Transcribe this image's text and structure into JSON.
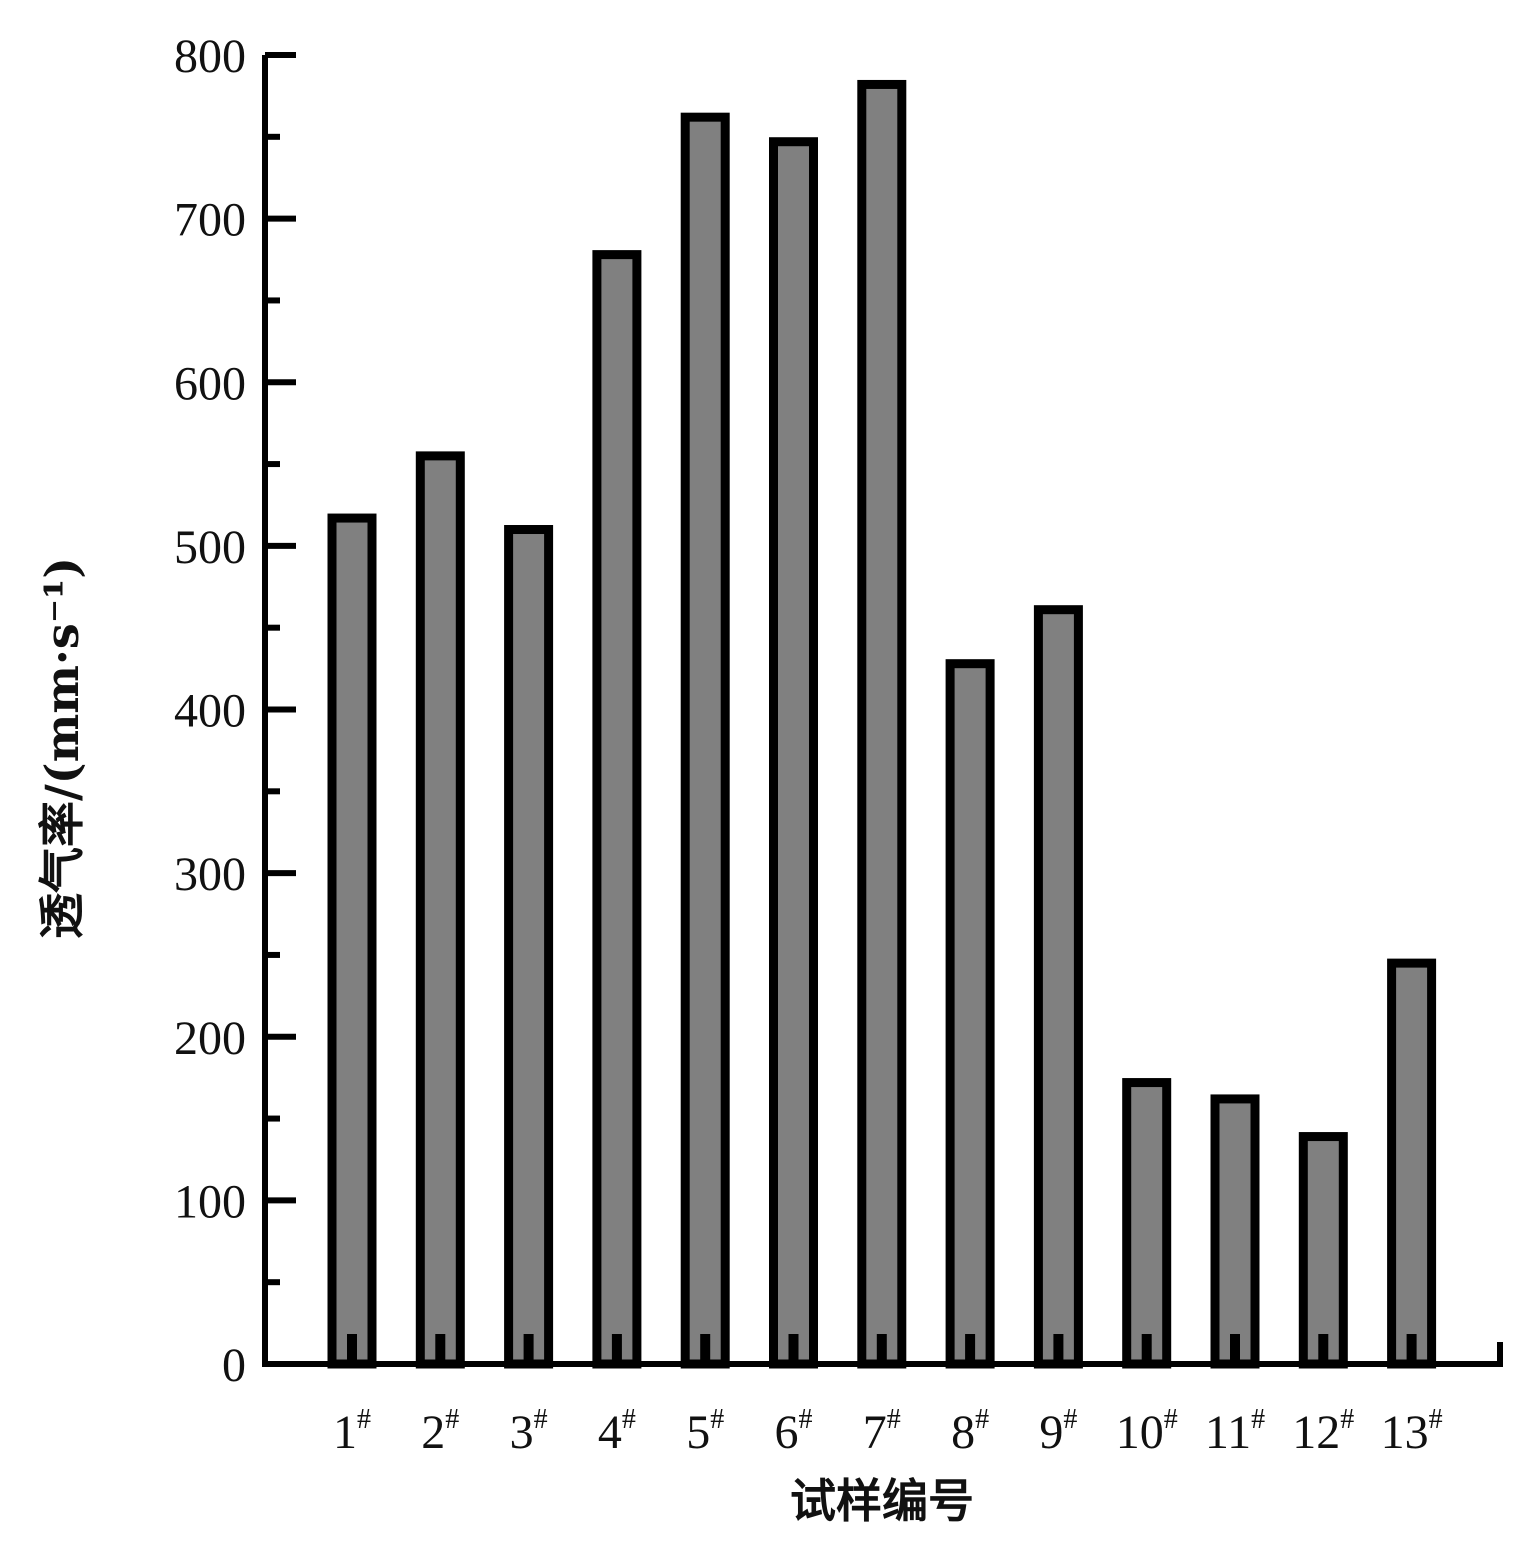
{
  "chart_data": {
    "type": "bar",
    "xlabel": "试样编号",
    "ylabel": "透气率/(mm·s⁻¹)",
    "ylim": [
      0,
      800
    ],
    "yticks": [
      "0",
      "100",
      "200",
      "300",
      "400",
      "500",
      "600",
      "700",
      "800"
    ],
    "grid": false,
    "legend": "none",
    "categories": [
      "1#",
      "2#",
      "3#",
      "4#",
      "5#",
      "6#",
      "7#",
      "8#",
      "9#",
      "10#",
      "11#",
      "12#",
      "13#"
    ],
    "category_parts": [
      {
        "num": "1",
        "sup": "#"
      },
      {
        "num": "2",
        "sup": "#"
      },
      {
        "num": "3",
        "sup": "#"
      },
      {
        "num": "4",
        "sup": "#"
      },
      {
        "num": "5",
        "sup": "#"
      },
      {
        "num": "6",
        "sup": "#"
      },
      {
        "num": "7",
        "sup": "#"
      },
      {
        "num": "8",
        "sup": "#"
      },
      {
        "num": "9",
        "sup": "#"
      },
      {
        "num": "10",
        "sup": "#"
      },
      {
        "num": "11",
        "sup": "#"
      },
      {
        "num": "12",
        "sup": "#"
      },
      {
        "num": "13",
        "sup": "#"
      }
    ],
    "values": [
      517,
      555,
      510,
      678,
      762,
      747,
      782,
      428,
      461,
      172,
      162,
      139,
      245
    ],
    "colors": {
      "bar_fill": "#808080",
      "bar_stroke": "#000000",
      "axis": "#000000"
    }
  }
}
